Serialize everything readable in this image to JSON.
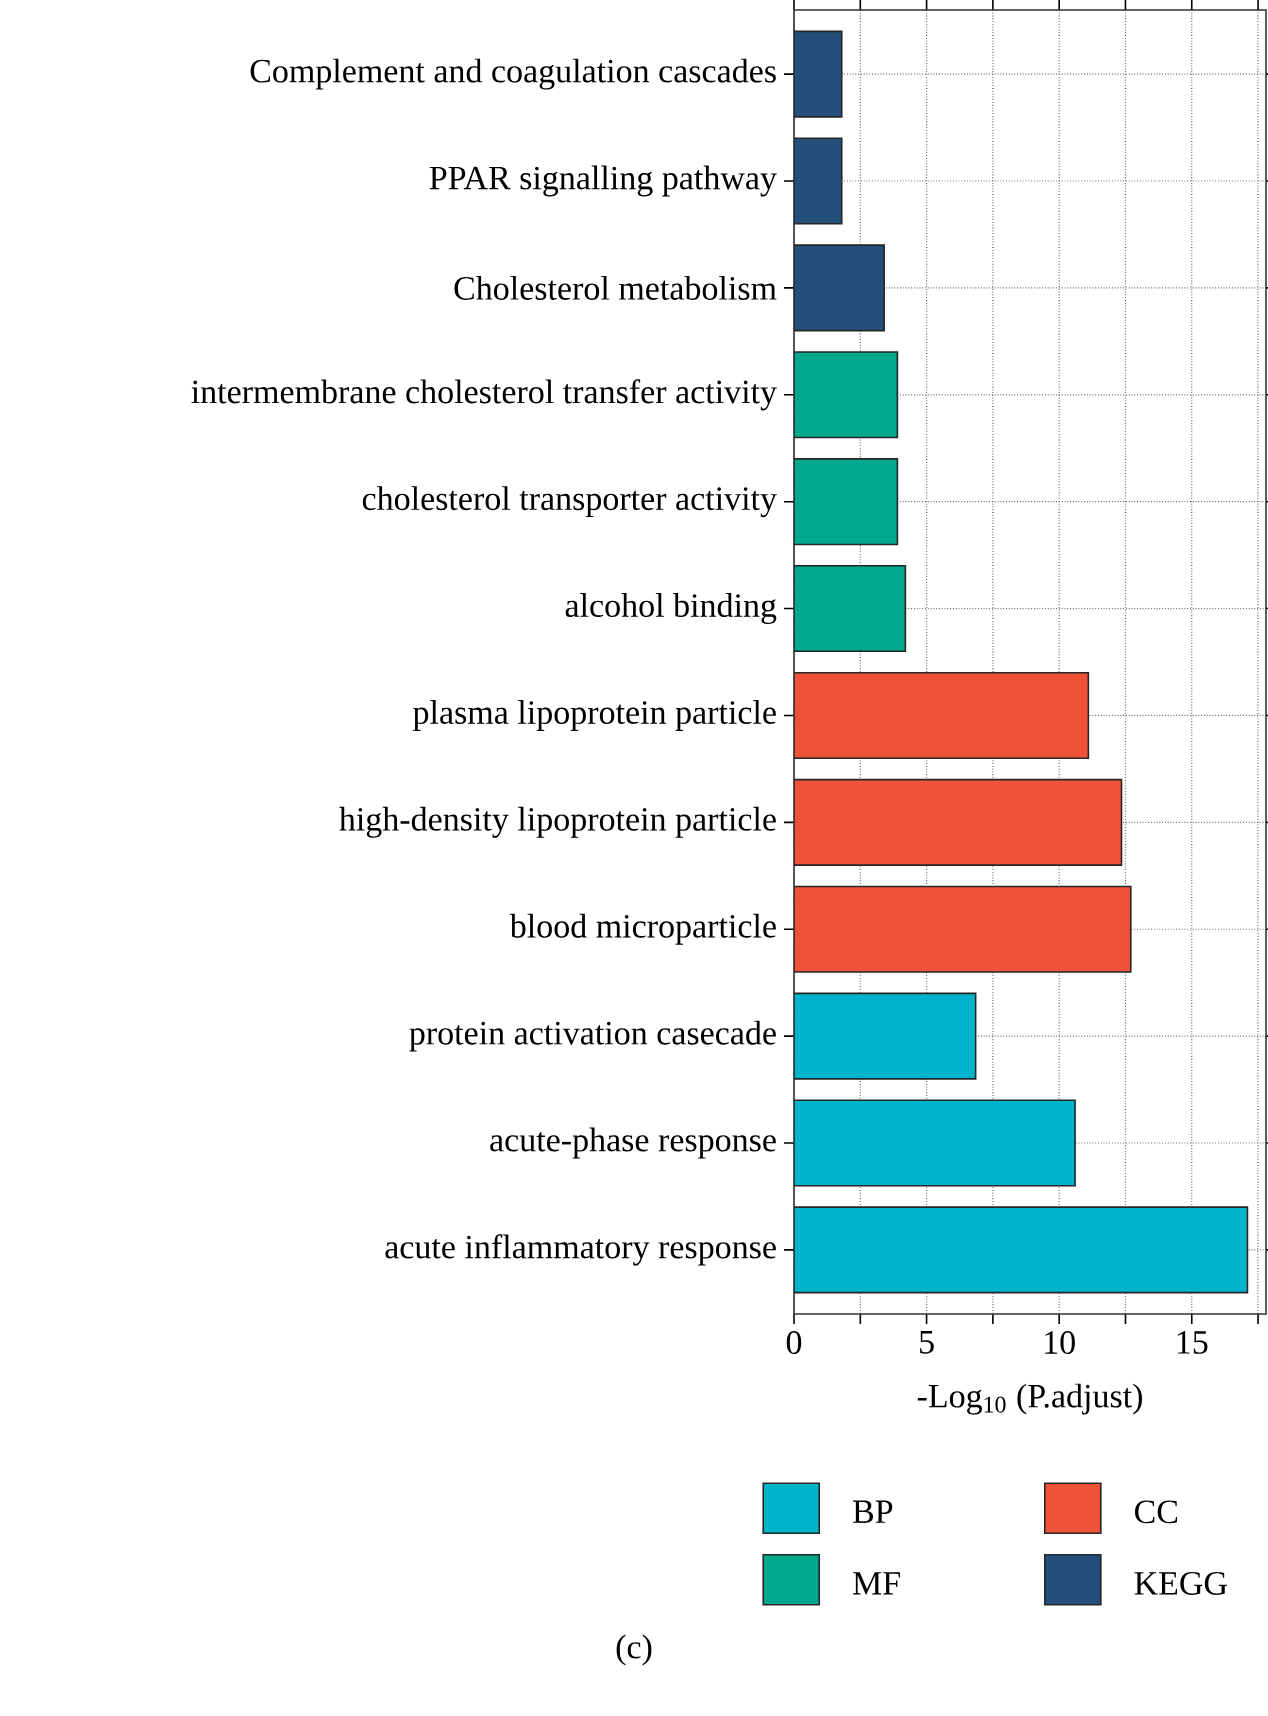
{
  "chart_data": {
    "type": "bar",
    "orientation": "horizontal",
    "xlabel": "-Log$_{10}$ (P.adjust)",
    "categories": [
      "Complement and coagulation cascades",
      "PPAR signalling pathway",
      "Cholesterol metabolism",
      "intermembrane cholesterol transfer activity",
      "cholesterol transporter activity",
      "alcohol binding",
      "plasma lipoprotein particle",
      "high-density lipoprotein particle",
      "blood microparticle",
      "protein activation casecade",
      "acute-phase response",
      "acute inflammatory response"
    ],
    "series": [
      {
        "name": "BP",
        "color": "#00b5cb",
        "values": [
          null,
          null,
          null,
          null,
          null,
          null,
          null,
          null,
          null,
          6.85,
          10.6,
          17.1
        ]
      },
      {
        "name": "CC",
        "color": "#ef5238",
        "values": [
          null,
          null,
          null,
          null,
          null,
          null,
          11.1,
          12.35,
          12.7,
          null,
          null,
          null
        ]
      },
      {
        "name": "MF",
        "color": "#00a88e",
        "values": [
          null,
          null,
          null,
          3.9,
          3.9,
          4.2,
          null,
          null,
          null,
          null,
          null,
          null
        ]
      },
      {
        "name": "KEGG",
        "color": "#244f7a",
        "values": [
          1.8,
          1.8,
          3.4,
          null,
          null,
          null,
          null,
          null,
          null,
          null,
          null,
          null
        ]
      }
    ],
    "xlim": [
      0,
      17.8
    ],
    "xticks": [
      0,
      {
        "value": 2.5,
        "label": null
      },
      5,
      {
        "value": 7.5,
        "label": null
      },
      10,
      {
        "value": 12.5,
        "label": null
      },
      15,
      {
        "value": 17.5,
        "label": null
      }
    ],
    "grid": true,
    "legend": "bottom",
    "annotations": [
      "(c)"
    ]
  }
}
